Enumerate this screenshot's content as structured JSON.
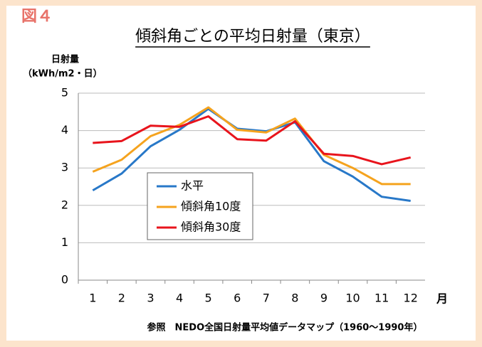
{
  "chart_data": {
    "type": "line",
    "figure_label": "図４",
    "title": "傾斜角ごとの平均日射量（東京）",
    "ylabel": [
      "日射量",
      "（kWh/m2・日）"
    ],
    "xlabel": "月",
    "note": "参照　NEDO全国日射量平均値データマップ（1960～1990年）",
    "categories": [
      "1",
      "2",
      "3",
      "4",
      "5",
      "6",
      "7",
      "8",
      "9",
      "10",
      "11",
      "12"
    ],
    "series": [
      {
        "name": "水平",
        "color": "#2878c8",
        "values": [
          2.4,
          2.85,
          3.58,
          4.02,
          4.58,
          4.05,
          3.98,
          4.22,
          3.18,
          2.77,
          2.23,
          2.12
        ]
      },
      {
        "name": "傾斜角10度",
        "color": "#f5a31e",
        "values": [
          2.9,
          3.22,
          3.85,
          4.15,
          4.62,
          4.02,
          3.95,
          4.32,
          3.35,
          3.0,
          2.57,
          2.57
        ]
      },
      {
        "name": "傾斜角30度",
        "color": "#e8141c",
        "values": [
          3.67,
          3.72,
          4.13,
          4.1,
          4.38,
          3.77,
          3.73,
          4.25,
          3.38,
          3.32,
          3.1,
          3.28
        ]
      }
    ],
    "ylim": [
      0,
      5
    ],
    "yticks": [
      0,
      1,
      2,
      3,
      4,
      5
    ],
    "grid": true
  }
}
